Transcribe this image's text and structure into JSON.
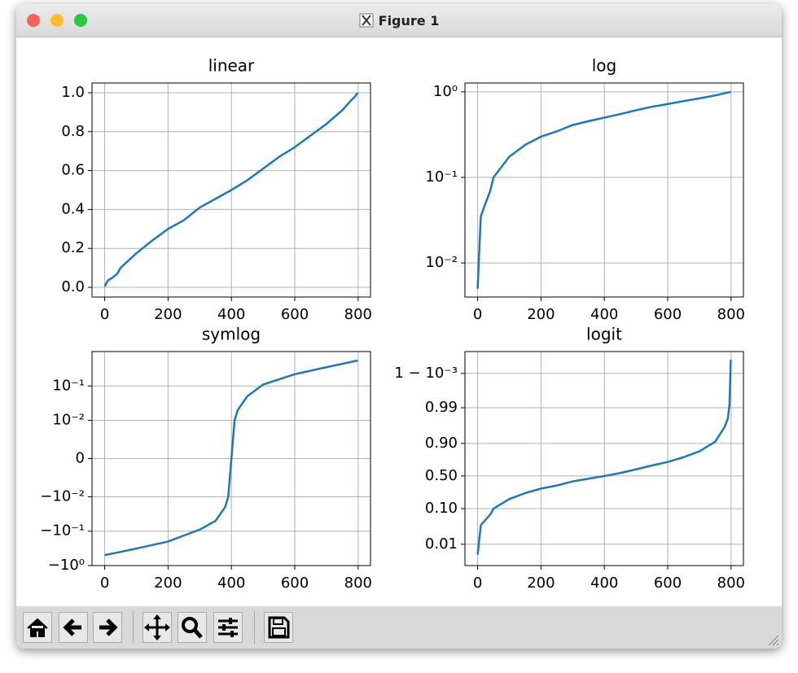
{
  "window": {
    "title": "Figure 1"
  },
  "chart_data": [
    {
      "type": "line",
      "title": "linear",
      "yscale": "linear",
      "color": "#1f77b4",
      "grid": true,
      "x": [
        0,
        10,
        25,
        40,
        50,
        100,
        150,
        200,
        250,
        300,
        350,
        400,
        450,
        500,
        550,
        600,
        650,
        700,
        750,
        780,
        790,
        795,
        799
      ],
      "values": [
        0.005,
        0.035,
        0.05,
        0.07,
        0.1,
        0.175,
        0.24,
        0.3,
        0.345,
        0.41,
        0.455,
        0.5,
        0.55,
        0.61,
        0.67,
        0.72,
        0.78,
        0.84,
        0.91,
        0.965,
        0.98,
        0.992,
        0.9996
      ],
      "xlim": [
        -40,
        839
      ],
      "ylim": [
        -0.05,
        1.05
      ],
      "xticks": [
        0,
        200,
        400,
        600,
        800
      ],
      "yticks": [
        {
          "value": 0,
          "label": "0.0"
        },
        {
          "value": 0.2,
          "label": "0.2"
        },
        {
          "value": 0.4,
          "label": "0.4"
        },
        {
          "value": 0.6,
          "label": "0.6"
        },
        {
          "value": 0.8,
          "label": "0.8"
        },
        {
          "value": 1,
          "label": "1.0"
        }
      ]
    },
    {
      "type": "line",
      "title": "log",
      "yscale": "log",
      "color": "#1f77b4",
      "grid": true,
      "x": [
        0,
        10,
        25,
        40,
        50,
        100,
        150,
        200,
        250,
        300,
        350,
        400,
        450,
        500,
        550,
        600,
        650,
        700,
        750,
        780,
        790,
        795,
        799
      ],
      "values": [
        0.005,
        0.035,
        0.05,
        0.07,
        0.1,
        0.175,
        0.24,
        0.3,
        0.345,
        0.41,
        0.455,
        0.5,
        0.55,
        0.61,
        0.67,
        0.72,
        0.78,
        0.84,
        0.91,
        0.965,
        0.98,
        0.992,
        0.9996
      ],
      "xlim": [
        -40,
        839
      ],
      "ylim": [
        0.004,
        1.27
      ],
      "xticks": [
        0,
        200,
        400,
        600,
        800
      ],
      "yticks": [
        {
          "value": 0.01,
          "label": "10⁻²"
        },
        {
          "value": 0.1,
          "label": "10⁻¹"
        },
        {
          "value": 1,
          "label": "10⁰"
        }
      ]
    },
    {
      "type": "line",
      "title": "symlog",
      "yscale": "symlog",
      "linthresh": 0.01,
      "color": "#1f77b4",
      "grid": true,
      "x": [
        0,
        50,
        100,
        200,
        300,
        350,
        380,
        390,
        395,
        400,
        405,
        410,
        420,
        450,
        500,
        600,
        700,
        799
      ],
      "values": [
        -0.495,
        -0.4,
        -0.32,
        -0.2,
        -0.09,
        -0.05,
        -0.02,
        -0.01,
        -0.005,
        0,
        0.005,
        0.01,
        0.02,
        0.05,
        0.11,
        0.22,
        0.35,
        0.55
      ],
      "xlim": [
        -40,
        839
      ],
      "ylim": [
        -1,
        1
      ],
      "xticks": [
        0,
        200,
        400,
        600,
        800
      ],
      "yticks": [
        {
          "value": -1,
          "label": "−10⁰"
        },
        {
          "value": -0.1,
          "label": "−10⁻¹"
        },
        {
          "value": -0.01,
          "label": "−10⁻²"
        },
        0,
        {
          "value": 0.01,
          "label": "10⁻²"
        },
        {
          "value": 0.1,
          "label": "10⁻¹"
        }
      ]
    },
    {
      "type": "line",
      "title": "logit",
      "yscale": "logit",
      "color": "#1f77b4",
      "grid": true,
      "x": [
        0,
        10,
        25,
        40,
        50,
        100,
        150,
        200,
        250,
        300,
        350,
        400,
        450,
        500,
        550,
        600,
        650,
        700,
        750,
        780,
        790,
        795,
        799
      ],
      "values": [
        0.005,
        0.035,
        0.05,
        0.07,
        0.1,
        0.175,
        0.24,
        0.3,
        0.345,
        0.41,
        0.455,
        0.5,
        0.55,
        0.61,
        0.67,
        0.72,
        0.78,
        0.84,
        0.91,
        0.965,
        0.98,
        0.992,
        0.9996
      ],
      "xlim": [
        -40,
        839
      ],
      "ylim": [
        0.0024,
        0.99977
      ],
      "xticks": [
        0,
        200,
        400,
        600,
        800
      ],
      "yticks": [
        {
          "value": 0.01,
          "label": "0.01"
        },
        {
          "value": 0.1,
          "label": "0.10"
        },
        {
          "value": 0.5,
          "label": "0.50"
        },
        {
          "value": 0.9,
          "label": "0.90"
        },
        {
          "value": 0.99,
          "label": "0.99"
        },
        {
          "value": 0.999,
          "label": "1 − 10⁻³"
        }
      ]
    }
  ]
}
